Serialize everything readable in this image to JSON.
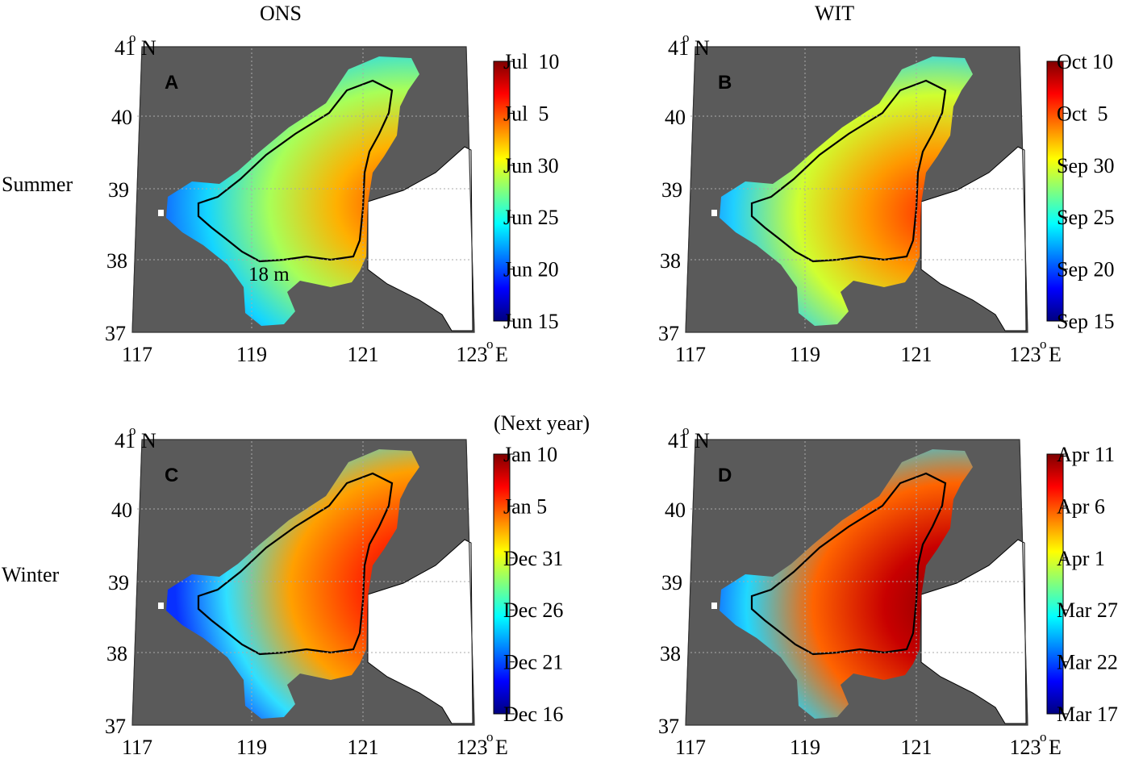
{
  "column_titles": [
    "ONS",
    "WIT"
  ],
  "row_titles": [
    "Summer",
    "Winter"
  ],
  "panels": [
    {
      "letter": "A",
      "lat_ticks": [
        "37",
        "38",
        "39",
        "40",
        "41"
      ],
      "lat_top_unit": "o",
      "lat_top_hemi": "N",
      "lon_ticks": [
        "117",
        "119",
        "121",
        "123"
      ],
      "lon_last_unit": "o",
      "lon_last_hemi": "E",
      "contour_label": "18 m",
      "colorbar": {
        "label_above": "",
        "ticks": [
          "Jul  10",
          "Jul  5",
          "Jun 30",
          "Jun 25",
          "Jun 20",
          "Jun 15"
        ]
      }
    },
    {
      "letter": "B",
      "lat_ticks": [
        "37",
        "38",
        "39",
        "40",
        "41"
      ],
      "lat_top_unit": "o",
      "lat_top_hemi": "N",
      "lon_ticks": [
        "117",
        "119",
        "121",
        "123"
      ],
      "lon_last_unit": "o",
      "lon_last_hemi": "E",
      "contour_label": "",
      "colorbar": {
        "label_above": "",
        "ticks": [
          "Oct 10",
          "Oct  5",
          "Sep 30",
          "Sep 25",
          "Sep 20",
          "Sep 15"
        ]
      }
    },
    {
      "letter": "C",
      "lat_ticks": [
        "37",
        "38",
        "39",
        "40",
        "41"
      ],
      "lat_top_unit": "o",
      "lat_top_hemi": "N",
      "lon_ticks": [
        "117",
        "119",
        "121",
        "123"
      ],
      "lon_last_unit": "o",
      "lon_last_hemi": "E",
      "contour_label": "",
      "colorbar": {
        "label_above": "(Next year)",
        "ticks": [
          "Jan 10",
          "Jan 5",
          "Dec 31",
          "Dec 26",
          "Dec 21",
          "Dec 16"
        ]
      }
    },
    {
      "letter": "D",
      "lat_ticks": [
        "37",
        "38",
        "39",
        "40",
        "41"
      ],
      "lat_top_unit": "o",
      "lat_top_hemi": "N",
      "lon_ticks": [
        "117",
        "119",
        "121",
        "123"
      ],
      "lon_last_unit": "o",
      "lon_last_hemi": "E",
      "contour_label": "",
      "colorbar": {
        "label_above": "",
        "ticks": [
          "Apr 11",
          "Apr 6",
          "Apr 1",
          "Mar 27",
          "Mar 22",
          "Mar 17"
        ]
      }
    }
  ],
  "colors": {
    "land": "#5a5a5a",
    "colormap": [
      "#00007f",
      "#0000ff",
      "#007fff",
      "#00ffff",
      "#7fff7f",
      "#ffff00",
      "#ff7f00",
      "#ff0000",
      "#7f0000"
    ]
  }
}
